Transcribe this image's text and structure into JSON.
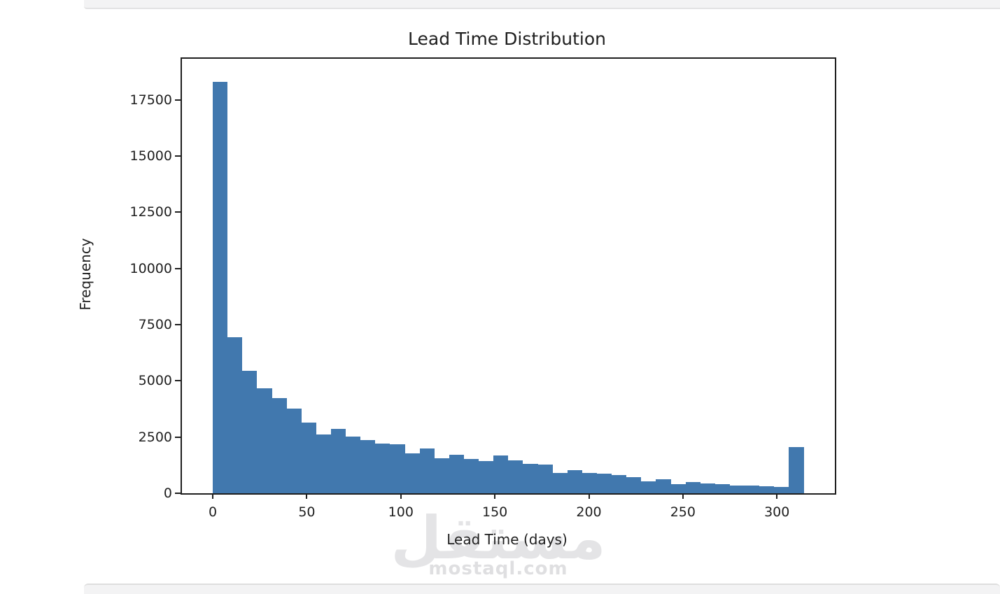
{
  "watermark": {
    "logo_text": "مستقل",
    "site_text": "mostaql.com"
  },
  "chart_data": {
    "type": "bar",
    "subtype": "histogram",
    "title": "Lead Time Distribution",
    "xlabel": "Lead Time (days)",
    "ylabel": "Frequency",
    "bar_color": "#4178ae",
    "grid": false,
    "legend": null,
    "bin_start": 0,
    "bin_width_days": 7.857,
    "values": [
      18300,
      6950,
      5450,
      4670,
      4230,
      3770,
      3150,
      2600,
      2850,
      2520,
      2350,
      2200,
      2170,
      1770,
      2000,
      1560,
      1700,
      1520,
      1430,
      1680,
      1460,
      1320,
      1290,
      890,
      1040,
      890,
      860,
      800,
      720,
      540,
      615,
      420,
      490,
      440,
      420,
      355,
      335,
      300,
      280,
      2050
    ],
    "x_ticks": [
      0,
      50,
      100,
      150,
      200,
      250,
      300
    ],
    "y_ticks": [
      0,
      2500,
      5000,
      7500,
      10000,
      12500,
      15000,
      17500
    ],
    "xlim": [
      -16.4,
      330.8
    ],
    "ylim": [
      0,
      19320
    ]
  }
}
